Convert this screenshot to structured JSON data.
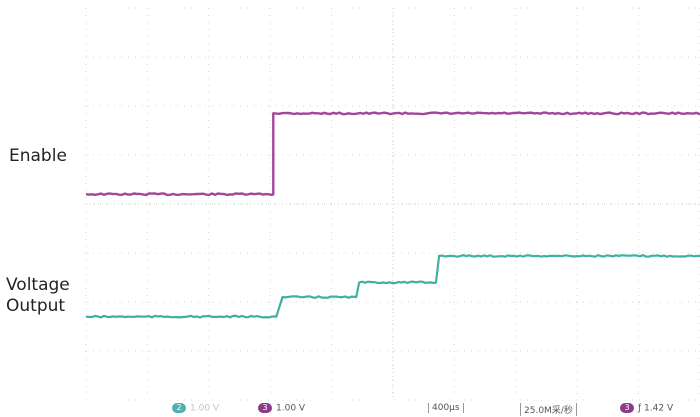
{
  "chart_data": {
    "type": "line",
    "traces": [
      {
        "name": "Enable",
        "color": "#a0479a",
        "points": [
          [
            0,
            0
          ],
          [
            3.05,
            0
          ],
          [
            3.05,
            1
          ],
          [
            10,
            1
          ]
        ]
      },
      {
        "name": "Voltage\nOutput",
        "color": "#3fb0a2",
        "points": [
          [
            0,
            0
          ],
          [
            3.1,
            0
          ],
          [
            3.2,
            0.2
          ],
          [
            4.4,
            0.2
          ],
          [
            4.45,
            0.35
          ],
          [
            5.7,
            0.35
          ],
          [
            5.75,
            0.62
          ],
          [
            10,
            0.62
          ]
        ]
      }
    ],
    "grid": true,
    "xdivisions": 10,
    "ydivisions": 8
  },
  "labels": {
    "enable": "Enable",
    "voltage_line1": "Voltage",
    "voltage_line2": "Output"
  },
  "status_bar": {
    "ch2_number": "2",
    "ch2_scale": "1.00 V",
    "ch3_number": "3",
    "ch3_scale": "1.00 V",
    "timebase": "400µs",
    "sample_rate": "25.0M采/秒",
    "trigger_channel": "3",
    "trigger_slope": "ƒ",
    "trigger_level": "1.42 V",
    "ch2_color": "#4fb2b0",
    "ch3_color": "#8d3a8a"
  }
}
